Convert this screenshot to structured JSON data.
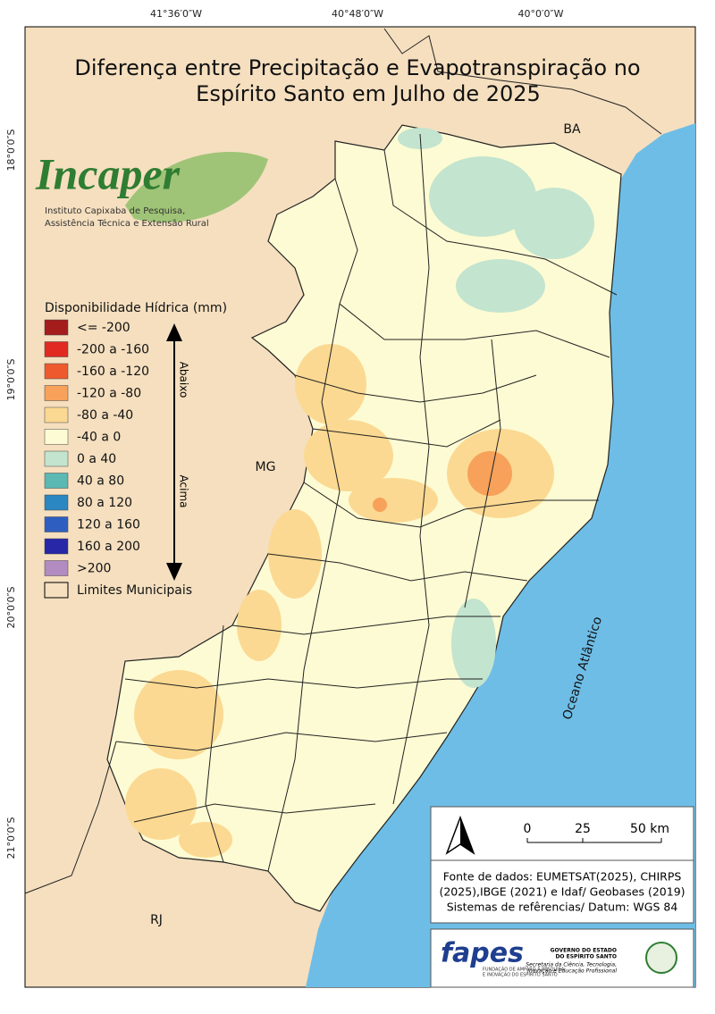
{
  "title": {
    "lines": [
      "Diferença entre Precipitação e Evapotranspiração no",
      "Espírito Santo em Julho de 2025"
    ]
  },
  "graticule": {
    "longitudes": [
      "41°36′0″W",
      "40°48′0″W",
      "40°0′0″W"
    ],
    "latitudes": [
      "18°0′0″S",
      "19°0′0″S",
      "20°0′0″S",
      "21°0′0″S"
    ]
  },
  "places": {
    "ba": "BA",
    "mg": "MG",
    "rj": "RJ",
    "ocean": "Oceano Atlântico"
  },
  "logo": {
    "name": "Incaper",
    "line1": "Instituto Capixaba de Pesquisa,",
    "line2": "Assistência Técnica e Extensão Rural"
  },
  "legend": {
    "title": "Disponibilidade Hídrica (mm)",
    "items": [
      {
        "label": "<= -200",
        "color": "#a51c1c"
      },
      {
        "label": "-200 a -160",
        "color": "#e02a22"
      },
      {
        "label": "-160 a -120",
        "color": "#ee5a2e"
      },
      {
        "label": "-120 a -80",
        "color": "#f7a15a"
      },
      {
        "label": "-80 a -40",
        "color": "#fbd992"
      },
      {
        "label": "-40 a 0",
        "color": "#fdfbd3"
      },
      {
        "label": "0 a 40",
        "color": "#c3e4cf"
      },
      {
        "label": "40 a 80",
        "color": "#5cb8b3"
      },
      {
        "label": "80 a 120",
        "color": "#2b87c2"
      },
      {
        "label": "120 a 160",
        "color": "#2e5fc0"
      },
      {
        "label": "160 a 200",
        "color": "#2727a8"
      },
      {
        "label": ">200",
        "color": "#b28bc0"
      }
    ],
    "boundaries": "Limites Municipais",
    "below": "Abaixo",
    "above": "Acima"
  },
  "scale_bar": {
    "labels": [
      "0",
      "25",
      "50 km"
    ]
  },
  "source": {
    "lines": [
      "Fonte de dados: EUMETSAT(2025), CHIRPS",
      "(2025),IBGE (2021) e Idaf/ Geobases (2019)",
      "Sistemas de refêrencias/ Datum: WGS 84"
    ]
  },
  "footer": {
    "fapes": "fapes",
    "fapes_sub1": "FUNDAÇÃO DE AMPARO À PESQUISA",
    "fapes_sub2": "E INOVAÇÃO DO ESPÍRITO SANTO",
    "gov1": "GOVERNO DO ESTADO",
    "gov2": "DO ESPÍRITO SANTO",
    "gov3": "Secretaria da Ciência, Tecnologia,",
    "gov4": "Inovação e Educação Profissional"
  }
}
